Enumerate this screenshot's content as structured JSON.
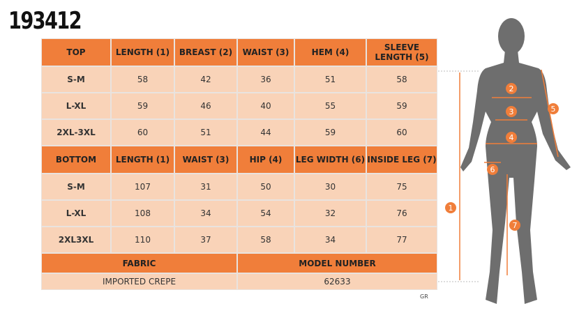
{
  "title": "193412",
  "top": {
    "header": [
      "TOP",
      "LENGTH (1)",
      "BREAST (2)",
      "WAIST (3)",
      "HEM (4)",
      "SLEEVE LENGTH (5)"
    ],
    "rows": [
      [
        "S-M",
        58,
        42,
        36,
        51,
        58
      ],
      [
        "L-XL",
        59,
        46,
        40,
        55,
        59
      ],
      [
        "2XL-3XL",
        60,
        51,
        44,
        59,
        60
      ]
    ]
  },
  "bottom": {
    "header": [
      "BOTTOM",
      "LENGTH (1)",
      "WAIST (3)",
      "HIP (4)",
      "LEG WIDTH (6)",
      "INSIDE LEG (7)"
    ],
    "rows": [
      [
        "S-M",
        107,
        31,
        50,
        30,
        75
      ],
      [
        "L-XL",
        108,
        34,
        54,
        32,
        76
      ],
      [
        "2XL3XL",
        110,
        37,
        58,
        34,
        77
      ]
    ]
  },
  "footer": {
    "labels": [
      "FABRIC",
      "MODEL NUMBER"
    ],
    "values": [
      "IMPORTED CREPE",
      62633
    ]
  },
  "note": "GR",
  "figure": {
    "markers": [
      "1",
      "2",
      "3",
      "4",
      "5",
      "6",
      "7"
    ]
  }
}
